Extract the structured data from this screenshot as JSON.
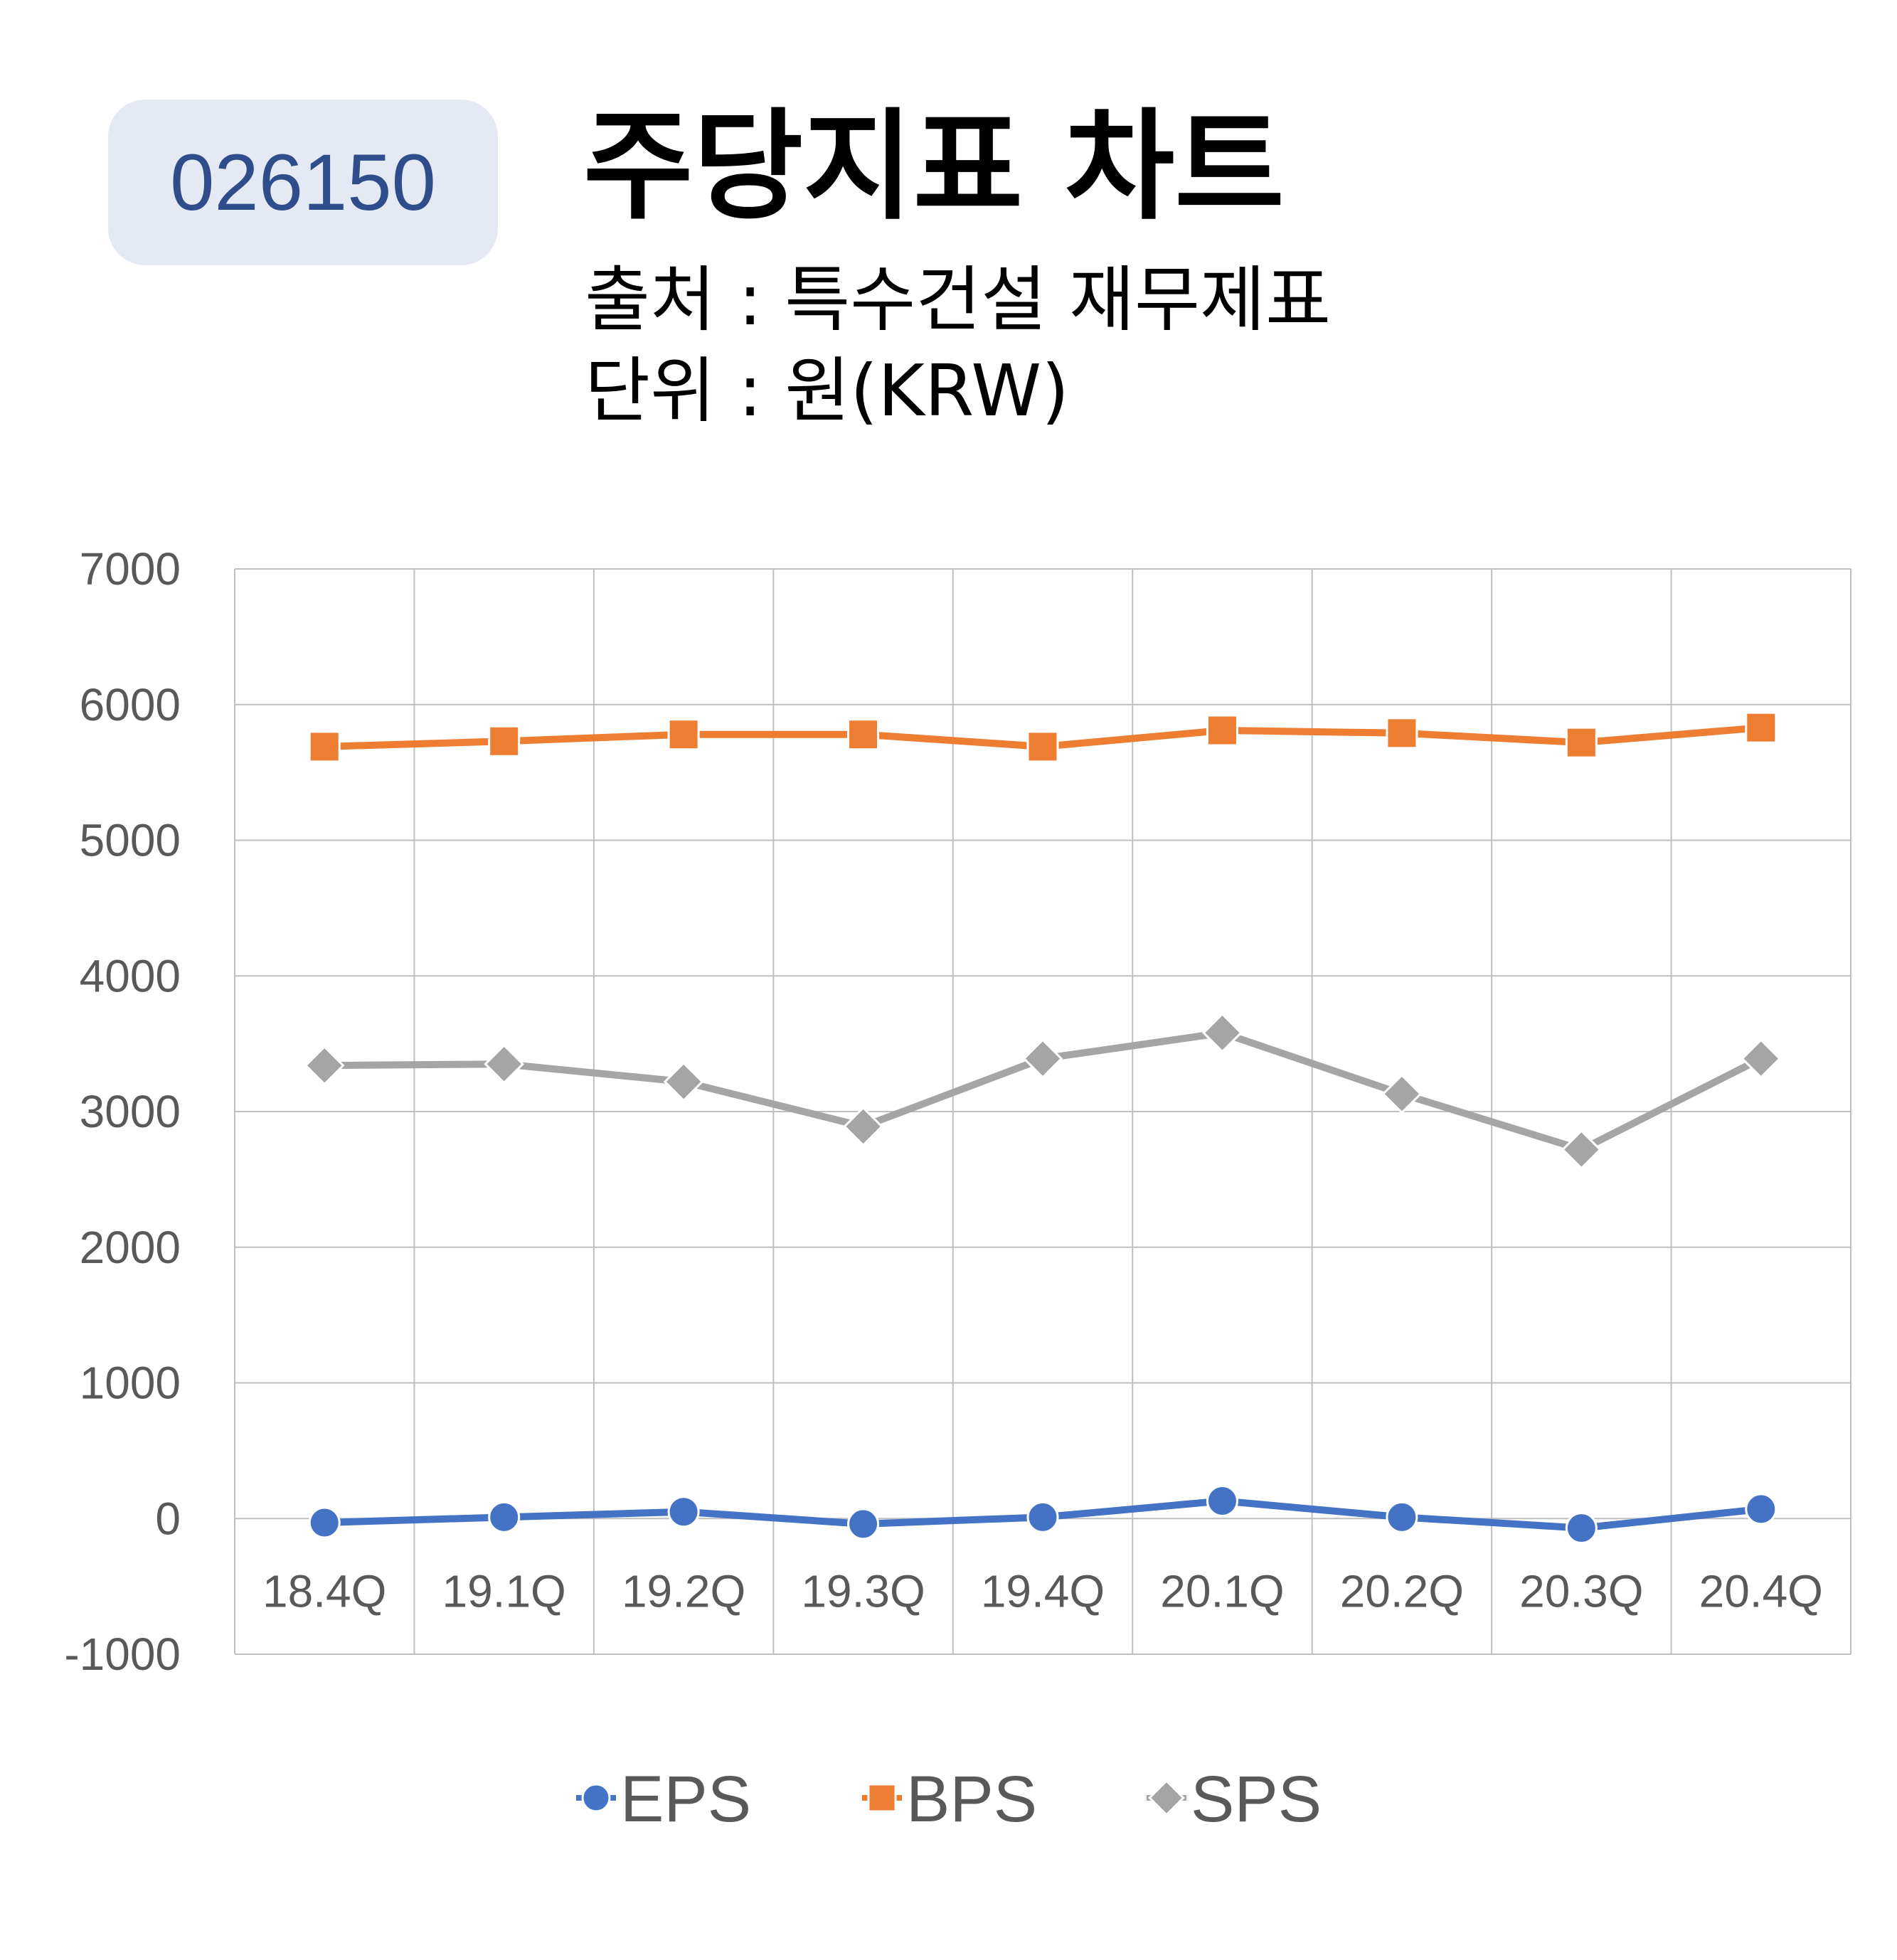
{
  "header": {
    "stock_code": "026150",
    "title": "주당지표 차트",
    "source_line": "출처 : 특수건설 재무제표",
    "unit_line": "단위 : 원(KRW)"
  },
  "colors": {
    "badge_bg": "#e4e9f4",
    "badge_text": "#2f4d8a",
    "EPS": "#4472c4",
    "BPS": "#ed7d31",
    "SPS": "#a5a5a5",
    "grid": "#bfbfbf",
    "tick_text": "#595959"
  },
  "chart_data": {
    "type": "line",
    "categories": [
      "18.4Q",
      "19.1Q",
      "19.2Q",
      "19.3Q",
      "19.4Q",
      "20.1Q",
      "20.2Q",
      "20.3Q",
      "20.4Q"
    ],
    "series": [
      {
        "name": "EPS",
        "marker": "circle",
        "values": [
          -30,
          10,
          50,
          -40,
          10,
          130,
          10,
          -70,
          70
        ]
      },
      {
        "name": "BPS",
        "marker": "square",
        "values": [
          5690,
          5730,
          5780,
          5780,
          5690,
          5810,
          5790,
          5720,
          5830
        ]
      },
      {
        "name": "SPS",
        "marker": "diamond",
        "values": [
          3340,
          3350,
          3220,
          2890,
          3390,
          3580,
          3130,
          2720,
          3390
        ]
      }
    ],
    "y_ticks": [
      "7000",
      "6000",
      "5000",
      "4000",
      "3000",
      "2000",
      "1000",
      "0",
      "-1000"
    ],
    "ylim": [
      -1000,
      7000
    ],
    "grid": true,
    "legend_position": "bottom"
  }
}
